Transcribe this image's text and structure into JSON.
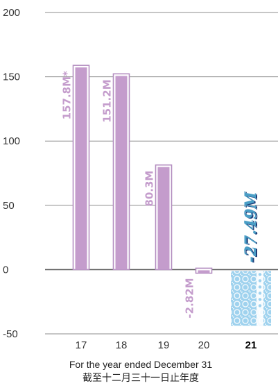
{
  "chart_data": {
    "type": "bar",
    "categories": [
      "17",
      "18",
      "19",
      "20",
      "21"
    ],
    "highlight_category": "21",
    "values": [
      157.8,
      151.2,
      80.3,
      -2.82,
      -27.49
    ],
    "data_labels": [
      "157.8M*",
      "151.2M",
      "80.3M",
      "-2.82M",
      "-27.49M"
    ],
    "title": "",
    "xlabel": "For the year ended December 31",
    "xlabel_secondary": "截至十二月三十一日止年度",
    "ylabel": "",
    "ylim": [
      -50,
      200
    ],
    "yticks": [
      200,
      150,
      100,
      50,
      0,
      -50
    ],
    "ytick_labels": [
      "200",
      "150",
      "100",
      "50",
      "0",
      "-50"
    ],
    "grid": true,
    "legend": "none",
    "colors": {
      "bar_fill": "#c49ccc",
      "bar_outline": "#b48ec0",
      "label": "#c49ccc",
      "current_bar": "#9fd2ee",
      "current_lace": "#ffffff",
      "current_label": "#4a9ec6",
      "current_label_shadow": "#1c3d78",
      "gridline": "#8c8c8c",
      "zero_line": "#5c5c5c"
    }
  }
}
